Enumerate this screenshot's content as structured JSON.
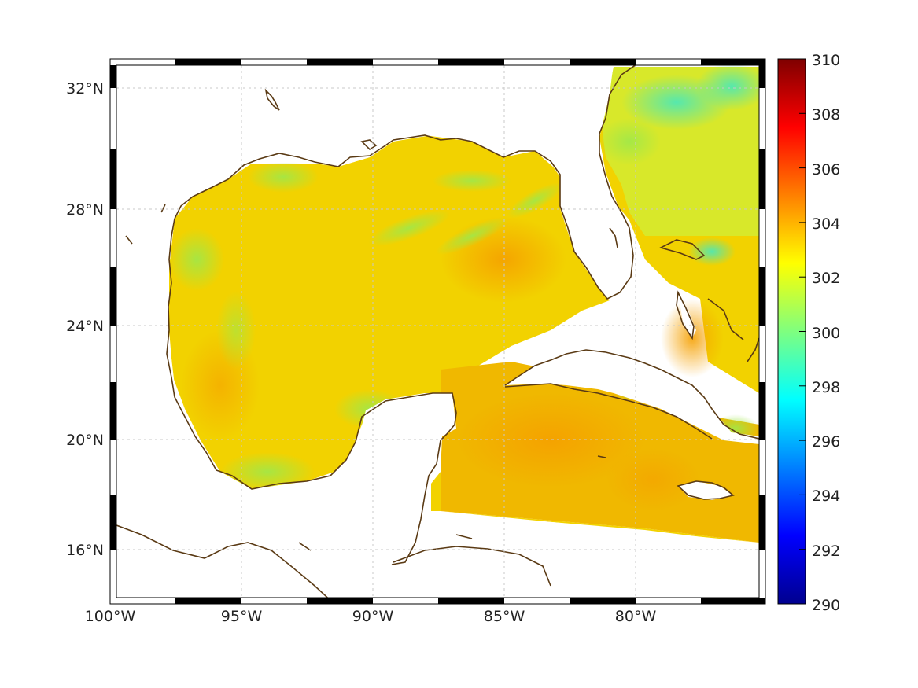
{
  "map": {
    "x_labels": [
      "100°W",
      "95°W",
      "90°W",
      "85°W",
      "80°W"
    ],
    "y_labels": [
      "32°N",
      "28°N",
      "24°N",
      "20°N",
      "16°N"
    ],
    "coastline_color": "#5a3a14",
    "grid": true
  },
  "colorbar": {
    "colormap": "jet",
    "min": 290,
    "max": 310,
    "ticks": [
      "310",
      "308",
      "306",
      "304",
      "302",
      "300",
      "298",
      "296",
      "294",
      "292",
      "290"
    ]
  }
}
